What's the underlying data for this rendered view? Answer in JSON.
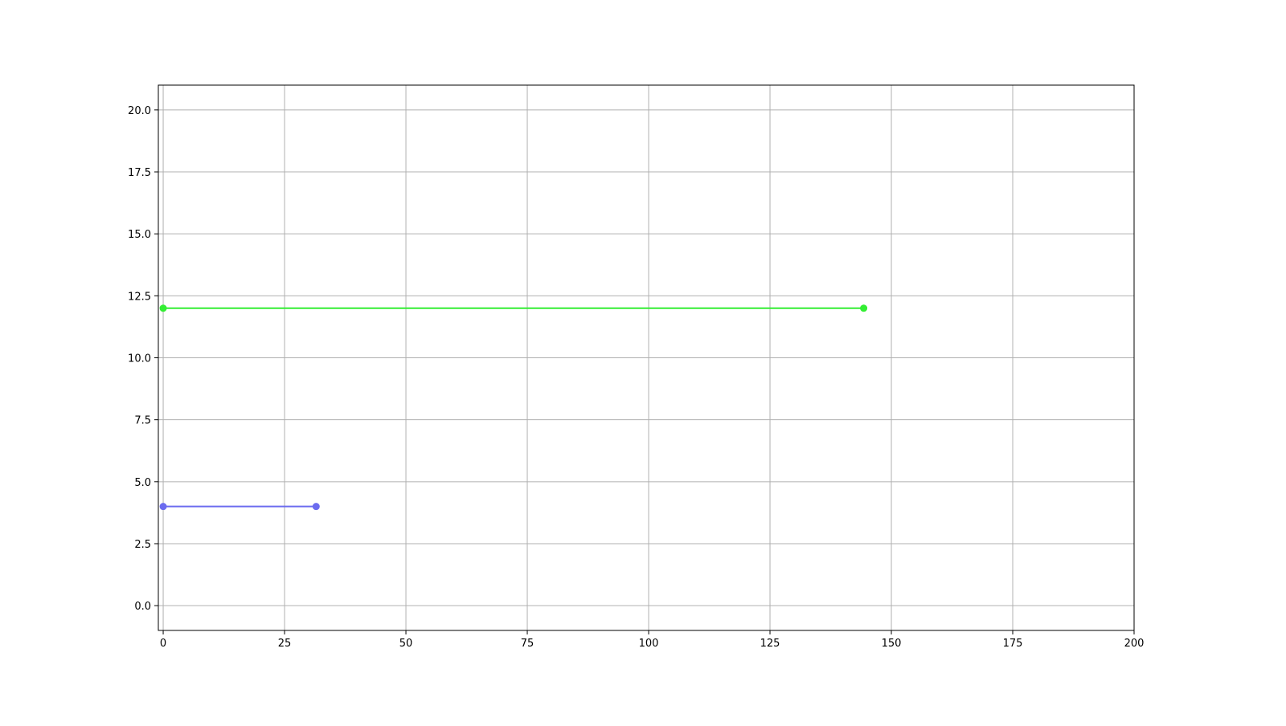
{
  "chart_data": {
    "type": "line",
    "title": "",
    "xlabel": "",
    "ylabel": "",
    "xlim": [
      -1,
      200
    ],
    "ylim": [
      -1,
      21
    ],
    "x_ticks": [
      0,
      25,
      50,
      75,
      100,
      125,
      150,
      175,
      200
    ],
    "x_tick_labels": [
      "0",
      "25",
      "50",
      "75",
      "100",
      "125",
      "150",
      "175",
      "200"
    ],
    "y_ticks": [
      0,
      2.5,
      5,
      7.5,
      10,
      12.5,
      15,
      17.5,
      20
    ],
    "y_tick_labels": [
      "0.0",
      "2.5",
      "5.0",
      "7.5",
      "10.0",
      "12.5",
      "15.0",
      "17.5",
      "20.0"
    ],
    "grid": true,
    "series": [
      {
        "color": "#33ee33",
        "marker": "circle",
        "points": [
          [
            0,
            12
          ],
          [
            144.3,
            12
          ]
        ]
      },
      {
        "color": "#6b6bef",
        "marker": "circle",
        "points": [
          [
            0,
            4
          ],
          [
            31.5,
            4
          ]
        ]
      }
    ]
  }
}
